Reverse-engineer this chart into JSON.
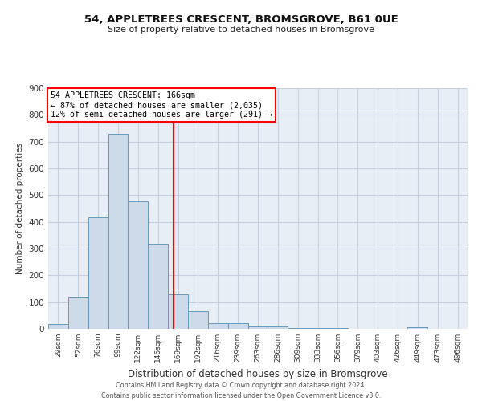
{
  "title": "54, APPLETREES CRESCENT, BROMSGROVE, B61 0UE",
  "subtitle": "Size of property relative to detached houses in Bromsgrove",
  "xlabel": "Distribution of detached houses by size in Bromsgrove",
  "ylabel": "Number of detached properties",
  "footer_line1": "Contains HM Land Registry data © Crown copyright and database right 2024.",
  "footer_line2": "Contains public sector information licensed under the Open Government Licence v3.0.",
  "bar_color": "#ccdaea",
  "bar_edge_color": "#6699bb",
  "grid_color": "#c5cfe0",
  "background_color": "#e8eef6",
  "categories": [
    "29sqm",
    "52sqm",
    "76sqm",
    "99sqm",
    "122sqm",
    "146sqm",
    "169sqm",
    "192sqm",
    "216sqm",
    "239sqm",
    "263sqm",
    "286sqm",
    "309sqm",
    "333sqm",
    "356sqm",
    "379sqm",
    "403sqm",
    "426sqm",
    "449sqm",
    "473sqm",
    "496sqm"
  ],
  "values": [
    18,
    120,
    418,
    730,
    478,
    318,
    130,
    65,
    22,
    20,
    10,
    8,
    4,
    2,
    2,
    0,
    0,
    0,
    5,
    0,
    0
  ],
  "ylim": [
    0,
    900
  ],
  "yticks": [
    0,
    100,
    200,
    300,
    400,
    500,
    600,
    700,
    800,
    900
  ],
  "annotation_text": "54 APPLETREES CRESCENT: 166sqm\n← 87% of detached houses are smaller (2,035)\n12% of semi-detached houses are larger (291) →",
  "vline_color": "red",
  "vline_x_category_index": 5.78
}
